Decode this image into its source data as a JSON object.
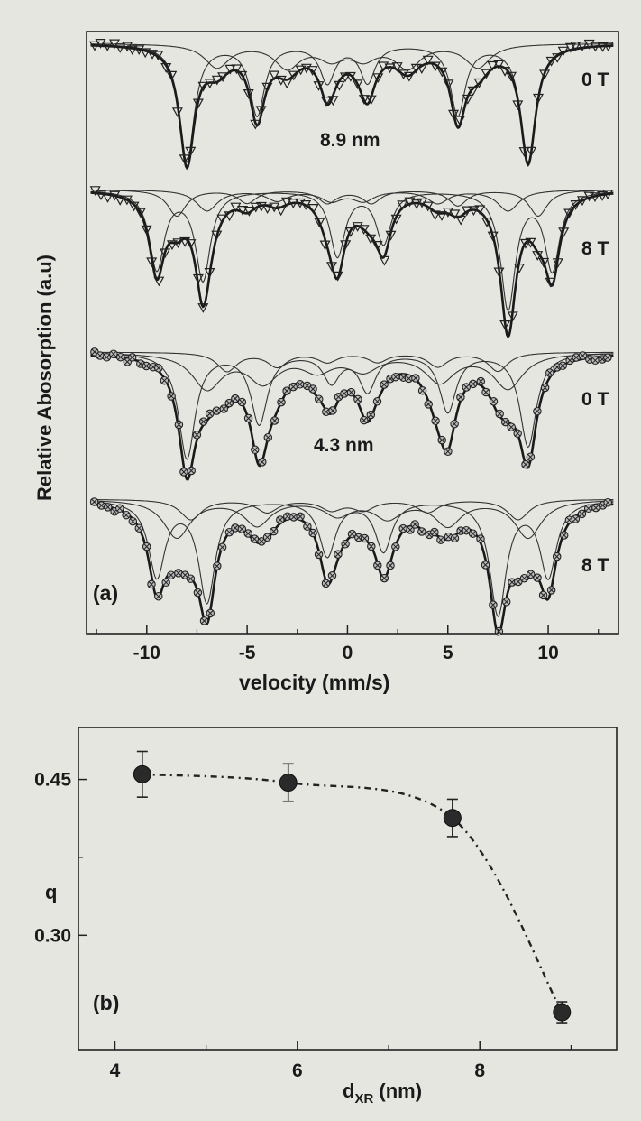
{
  "chart_data": [
    {
      "panel_label": "(a)",
      "type": "line",
      "xlabel": "velocity (mm/s)",
      "ylabel": "Relative Abosorption (a.u)",
      "xlim": [
        -13,
        13.5
      ],
      "xticks": [
        -10,
        -5,
        0,
        5,
        10
      ],
      "xtick_labels": [
        "-10",
        "-5",
        "0",
        "5",
        "10"
      ],
      "series": [
        {
          "name": "8.9 nm, 0 T",
          "field_label": "0 T",
          "size_label": "8.9 nm",
          "marker": "triangle-down",
          "sextets": [
            {
              "centers": [
                -8.0,
                -4.5,
                -1.0,
                1.0,
                5.5,
                9.0
              ],
              "depths": [
                0.5,
                0.3,
                0.16,
                0.16,
                0.3,
                0.5
              ],
              "width": 0.9
            },
            {
              "centers": [
                -6.5,
                -3.0,
                -0.8,
                0.8,
                3.0,
                6.5
              ],
              "depths": [
                0.1,
                0.1,
                0.06,
                0.06,
                0.1,
                0.1
              ],
              "width": 1.5
            }
          ]
        },
        {
          "name": "8.9 nm, 8 T",
          "field_label": "8 T",
          "marker": "triangle-down",
          "sextets": [
            {
              "centers": [
                -8.5,
                -5.0,
                -1.0,
                1.2,
                5.5,
                9.5
              ],
              "depths": [
                0.1,
                0.05,
                0.05,
                0.05,
                0.06,
                0.1
              ],
              "width": 1.1
            },
            {
              "centers": [
                -7.0,
                -3.5,
                -0.8,
                0.8,
                4.5,
                8.0
              ],
              "depths": [
                0.08,
                0.04,
                0.04,
                0.04,
                0.05,
                0.08
              ],
              "width": 1.3
            },
            {
              "centers": [
                -9.5,
                -7.2,
                -0.5,
                1.8,
                8.0,
                10.2
              ],
              "depths": [
                0.3,
                0.34,
                0.25,
                0.2,
                0.45,
                0.3
              ],
              "width": 0.9
            }
          ]
        },
        {
          "name": "4.3 nm, 0 T",
          "field_label": "0 T",
          "size_label": "4.3 nm",
          "marker": "circle-cross",
          "sextets": [
            {
              "centers": [
                -8.0,
                -4.4,
                -0.8,
                1.0,
                5.0,
                9.0
              ],
              "depths": [
                0.45,
                0.3,
                0.12,
                0.16,
                0.25,
                0.4
              ],
              "width": 1.0
            },
            {
              "centers": [
                -7.0,
                -4.2,
                -1.5,
                0.8,
                4.6,
                8.0
              ],
              "depths": [
                0.15,
                0.12,
                0.07,
                0.07,
                0.12,
                0.15
              ],
              "width": 1.8
            },
            {
              "centers": [
                -6.0,
                -3.5,
                -1.0,
                1.5,
                4.5,
                7.5
              ],
              "depths": [
                0.08,
                0.06,
                0.04,
                0.04,
                0.06,
                0.08
              ],
              "width": 1.2
            }
          ]
        },
        {
          "name": "4.3 nm, 8 T",
          "field_label": "8 T",
          "marker": "circle-cross",
          "sextets": [
            {
              "centers": [
                -9.5,
                -7.0,
                -1.0,
                1.8,
                7.5,
                10.0
              ],
              "depths": [
                0.3,
                0.4,
                0.22,
                0.2,
                0.45,
                0.3
              ],
              "width": 1.0
            },
            {
              "centers": [
                -8.5,
                -4.5,
                -0.5,
                2.0,
                5.0,
                9.0
              ],
              "depths": [
                0.15,
                0.1,
                0.06,
                0.07,
                0.1,
                0.15
              ],
              "width": 1.6
            },
            {
              "centers": [
                -7.8,
                -4.0,
                -0.8,
                0.8,
                4.0,
                8.5
              ],
              "depths": [
                0.08,
                0.05,
                0.04,
                0.04,
                0.05,
                0.08
              ],
              "width": 1.3
            }
          ]
        }
      ]
    },
    {
      "panel_label": "(b)",
      "type": "scatter",
      "xlabel": "d",
      "xlabel_sub": "XR",
      "xlabel_unit": " (nm)",
      "ylabel": "q",
      "xlim": [
        3.6,
        9.5
      ],
      "ylim": [
        0.19,
        0.5
      ],
      "xticks": [
        4,
        6,
        8
      ],
      "xtick_labels": [
        "4",
        "6",
        "8"
      ],
      "yticks": [
        0.3,
        0.45
      ],
      "ytick_labels": [
        "0.30",
        "0.45"
      ],
      "points": [
        {
          "x": 4.3,
          "y": 0.455,
          "err": 0.022
        },
        {
          "x": 5.9,
          "y": 0.447,
          "err": 0.018
        },
        {
          "x": 7.7,
          "y": 0.413,
          "err": 0.018
        },
        {
          "x": 8.9,
          "y": 0.226,
          "err": 0.01
        }
      ],
      "fit_line": "dash-dot"
    }
  ]
}
